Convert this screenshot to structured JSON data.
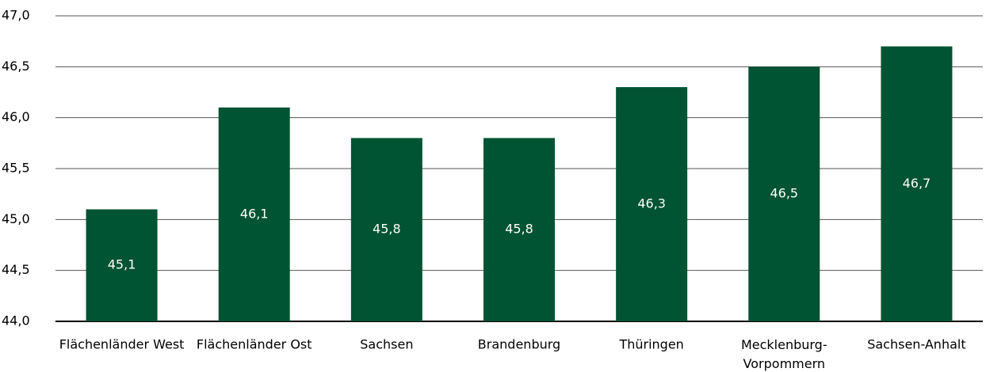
{
  "chart_data": {
    "type": "bar",
    "categories": [
      "Flächenländer West",
      "Flächenländer Ost",
      "Sachsen",
      "Brandenburg",
      "Thüringen",
      "Mecklenburg-Vorpommern",
      "Sachsen-Anhalt"
    ],
    "values": [
      45.1,
      46.1,
      45.8,
      45.8,
      46.3,
      46.5,
      46.7
    ],
    "value_labels": [
      "45,1",
      "46,1",
      "45,8",
      "45,8",
      "46,3",
      "46,5",
      "46,7"
    ],
    "color": "#005333",
    "ylim": [
      44,
      47
    ],
    "yticks": [
      {
        "value": 44,
        "label": "44,0"
      },
      {
        "value": 44.5,
        "label": "44,5"
      },
      {
        "value": 45,
        "label": "45,0"
      },
      {
        "value": 45.5,
        "label": "45,5"
      },
      {
        "value": 46,
        "label": "46,0"
      },
      {
        "value": 46.5,
        "label": "46,5"
      },
      {
        "value": 47,
        "label": "47,0"
      }
    ],
    "grid": true
  }
}
